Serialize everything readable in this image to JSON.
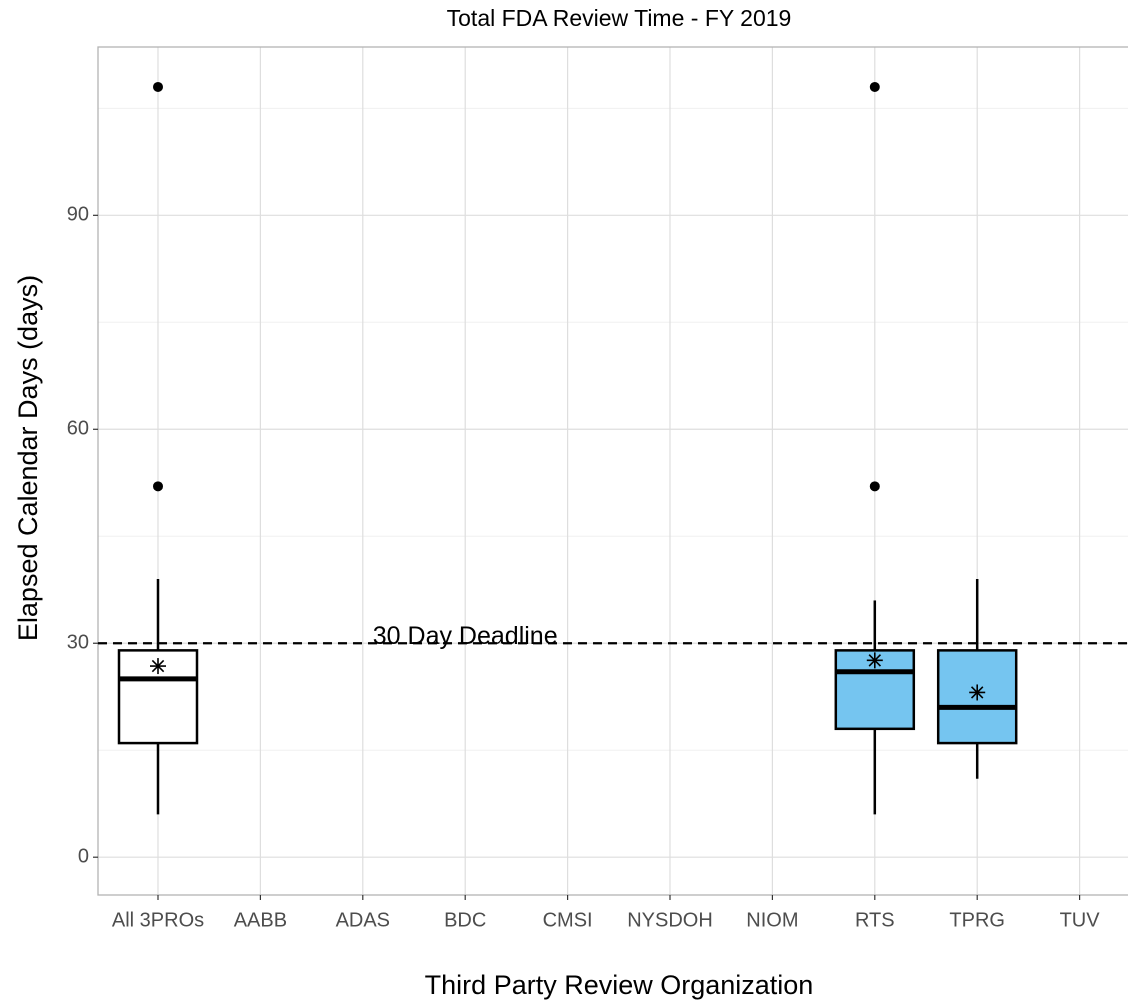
{
  "chart_data": {
    "type": "box",
    "title": "Total FDA Review Time - FY 2019",
    "x_label": "Third Party Review Organization",
    "y_label": "Elapsed Calendar Days (days)",
    "categories": [
      "All 3PROs",
      "AABB",
      "ADAS",
      "BDC",
      "CMSI",
      "NYSDOH",
      "NIOM",
      "RTS",
      "TPRG",
      "TUV"
    ],
    "boxes": [
      {
        "min": 6,
        "q1": 16,
        "median": 25,
        "q3": 29,
        "max": 39,
        "mean": 26.8,
        "outliers": [
          52,
          108
        ],
        "fill": "#ffffff"
      },
      null,
      null,
      null,
      null,
      null,
      null,
      {
        "min": 6,
        "q1": 18,
        "median": 26,
        "q3": 29,
        "max": 36,
        "mean": 27.6,
        "outliers": [
          52,
          108
        ],
        "fill": "#75c5f0"
      },
      {
        "min": 11,
        "q1": 16,
        "median": 21,
        "q3": 29,
        "max": 39,
        "mean": 23.1,
        "outliers": [],
        "fill": "#75c5f0"
      },
      null
    ],
    "hline": {
      "value": 30,
      "label": "30 Day Deadline"
    },
    "ylim": [
      -5.3,
      113.6
    ],
    "yticks": [
      0,
      30,
      60,
      90
    ],
    "minor_yticks": [
      15,
      45,
      75,
      105
    ],
    "grid": true
  }
}
